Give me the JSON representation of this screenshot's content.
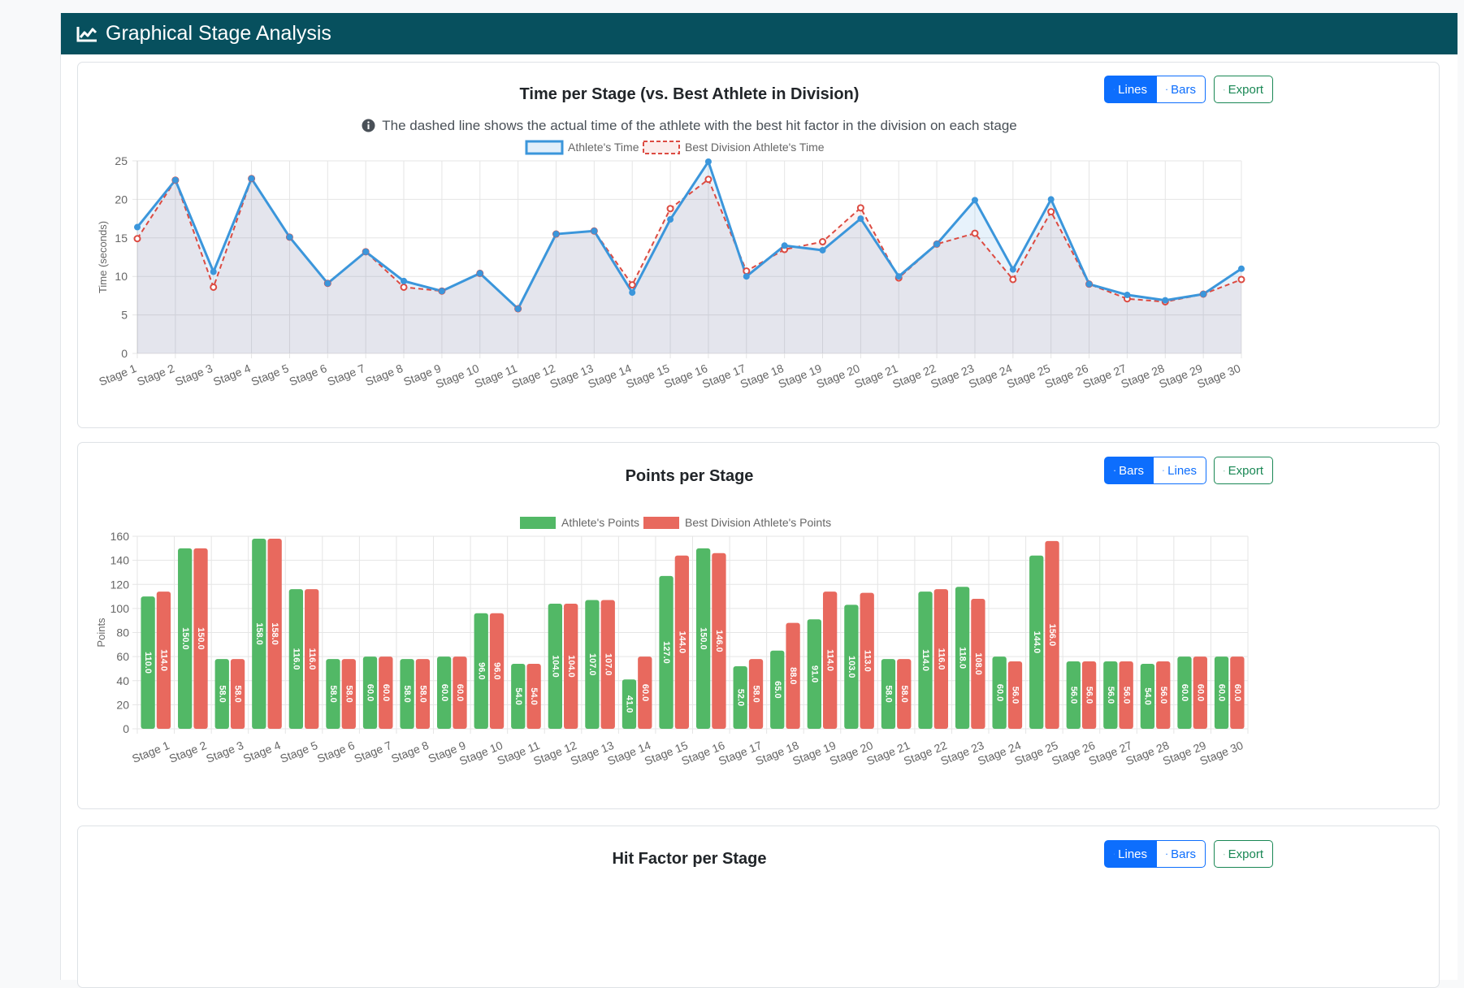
{
  "header": {
    "title": "Graphical Stage Analysis"
  },
  "time_card": {
    "title": "Time per Stage (vs. Best Athlete in Division)",
    "note": "The dashed line shows the actual time of the athlete with the best hit factor in the division on each stage",
    "buttons": {
      "lines": "Lines",
      "bars": "Bars",
      "export": "Export"
    }
  },
  "points_card": {
    "title": "Points per Stage",
    "buttons": {
      "bars": "Bars",
      "lines": "Lines",
      "export": "Export"
    }
  },
  "hf_card": {
    "title": "Hit Factor per Stage",
    "buttons": {
      "lines": "Lines",
      "bars": "Bars",
      "export": "Export"
    }
  },
  "colors": {
    "header_bg": "#07505e",
    "athlete_line": "#3b96db",
    "best_line": "#dc4b42",
    "athlete_bar": "#52b866",
    "best_bar": "#e8695e",
    "primary": "#0d6efd",
    "success": "#198754"
  },
  "chart_data": [
    {
      "type": "line",
      "categories": [
        "Stage 1",
        "Stage 2",
        "Stage 3",
        "Stage 4",
        "Stage 5",
        "Stage 6",
        "Stage 7",
        "Stage 8",
        "Stage 9",
        "Stage 10",
        "Stage 11",
        "Stage 12",
        "Stage 13",
        "Stage 14",
        "Stage 15",
        "Stage 16",
        "Stage 17",
        "Stage 18",
        "Stage 19",
        "Stage 20",
        "Stage 21",
        "Stage 22",
        "Stage 23",
        "Stage 24",
        "Stage 25",
        "Stage 26",
        "Stage 27",
        "Stage 28",
        "Stage 29",
        "Stage 30"
      ],
      "series": [
        {
          "name": "Athlete's Time",
          "values": [
            16.4,
            22.5,
            10.6,
            22.7,
            15.1,
            9.1,
            13.2,
            9.4,
            8.1,
            10.4,
            5.8,
            15.5,
            15.9,
            7.9,
            17.4,
            24.9,
            10.0,
            14.0,
            13.4,
            17.5,
            10.0,
            14.2,
            19.9,
            10.9,
            20.0,
            9.0,
            7.6,
            6.9,
            7.7,
            11.0
          ]
        },
        {
          "name": "Best Division Athlete's Time",
          "values": [
            14.9,
            22.5,
            8.6,
            22.7,
            15.1,
            9.1,
            13.2,
            8.6,
            8.1,
            10.4,
            5.8,
            15.5,
            15.9,
            8.9,
            18.8,
            22.6,
            10.7,
            13.5,
            14.5,
            18.9,
            9.8,
            14.2,
            15.6,
            9.6,
            18.4,
            9.0,
            7.1,
            6.7,
            7.7,
            9.6
          ]
        }
      ],
      "ylabel": "Time (seconds)",
      "ylim": [
        0,
        25
      ],
      "yticks": [
        "0",
        "5",
        "10",
        "15",
        "20",
        "25"
      ],
      "grid": true,
      "legend": "top"
    },
    {
      "type": "bar",
      "categories": [
        "Stage 1",
        "Stage 2",
        "Stage 3",
        "Stage 4",
        "Stage 5",
        "Stage 6",
        "Stage 7",
        "Stage 8",
        "Stage 9",
        "Stage 10",
        "Stage 11",
        "Stage 12",
        "Stage 13",
        "Stage 14",
        "Stage 15",
        "Stage 16",
        "Stage 17",
        "Stage 18",
        "Stage 19",
        "Stage 20",
        "Stage 21",
        "Stage 22",
        "Stage 23",
        "Stage 24",
        "Stage 25",
        "Stage 26",
        "Stage 27",
        "Stage 28",
        "Stage 29",
        "Stage 30"
      ],
      "series": [
        {
          "name": "Athlete's Points",
          "values": [
            110,
            150,
            58,
            158,
            116,
            58,
            60,
            58,
            60,
            96,
            54,
            104,
            107,
            41,
            127,
            150,
            52,
            65,
            91,
            103,
            58,
            114,
            118,
            60,
            144,
            56,
            56,
            54,
            60,
            60
          ]
        },
        {
          "name": "Best Division Athlete's Points",
          "values": [
            114,
            150,
            58,
            158,
            116,
            58,
            60,
            58,
            60,
            96,
            54,
            104,
            107,
            60,
            144,
            146,
            58,
            88,
            114,
            113,
            58,
            116,
            108,
            56,
            156,
            56,
            56,
            56,
            60,
            60
          ]
        }
      ],
      "ylabel": "Points",
      "ylim": [
        0,
        160
      ],
      "yticks": [
        "0",
        "20",
        "40",
        "60",
        "80",
        "100",
        "120",
        "140",
        "160"
      ],
      "grid": true,
      "legend": "top",
      "data_labels": true
    }
  ]
}
